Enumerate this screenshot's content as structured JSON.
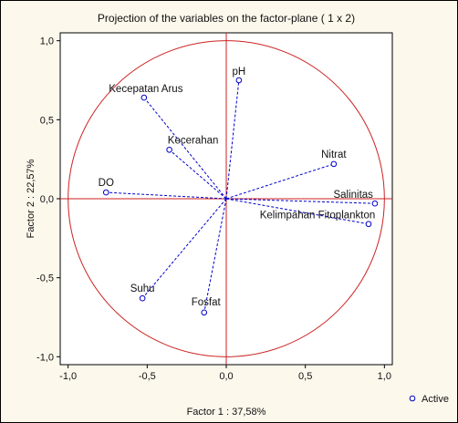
{
  "chart_data": {
    "type": "scatter",
    "title": "Projection of the variables on the factor-plane (  1 x   2)",
    "xlabel": "Factor 1 : 37,58%",
    "ylabel": "Factor 2 : 22,57%",
    "xlim": [
      -1.05,
      1.05
    ],
    "ylim": [
      -1.05,
      1.05
    ],
    "xticks": [
      "-1,0",
      "-0,5",
      "0,0",
      "0,5",
      "1,0"
    ],
    "yticks": [
      "1,0",
      "0,5",
      "0,0",
      "-0,5",
      "-1,0"
    ],
    "grid": false,
    "unit_circle": true,
    "legend": {
      "label": "Active",
      "placement": "bottom-right, outside plot"
    },
    "colors": {
      "vectors": "#0000cc",
      "points": "#0000cc",
      "circle": "#cc2222",
      "zero_lines": "#cc2222",
      "background": "#fdf8ec"
    },
    "points": [
      {
        "name": "pH",
        "x": 0.08,
        "y": 0.75
      },
      {
        "name": "Kecepatan Arus",
        "x": -0.52,
        "y": 0.64
      },
      {
        "name": "Kecerahan",
        "x": -0.36,
        "y": 0.31
      },
      {
        "name": "Nitrat",
        "x": 0.68,
        "y": 0.22
      },
      {
        "name": "DO",
        "x": -0.76,
        "y": 0.04
      },
      {
        "name": "Salinitas",
        "x": 0.94,
        "y": -0.03
      },
      {
        "name": "Kelimpahan Fitoplankton",
        "x": 0.9,
        "y": -0.16
      },
      {
        "name": "Suhu",
        "x": -0.53,
        "y": -0.63
      },
      {
        "name": "Fosfat",
        "x": -0.14,
        "y": -0.72
      }
    ]
  }
}
